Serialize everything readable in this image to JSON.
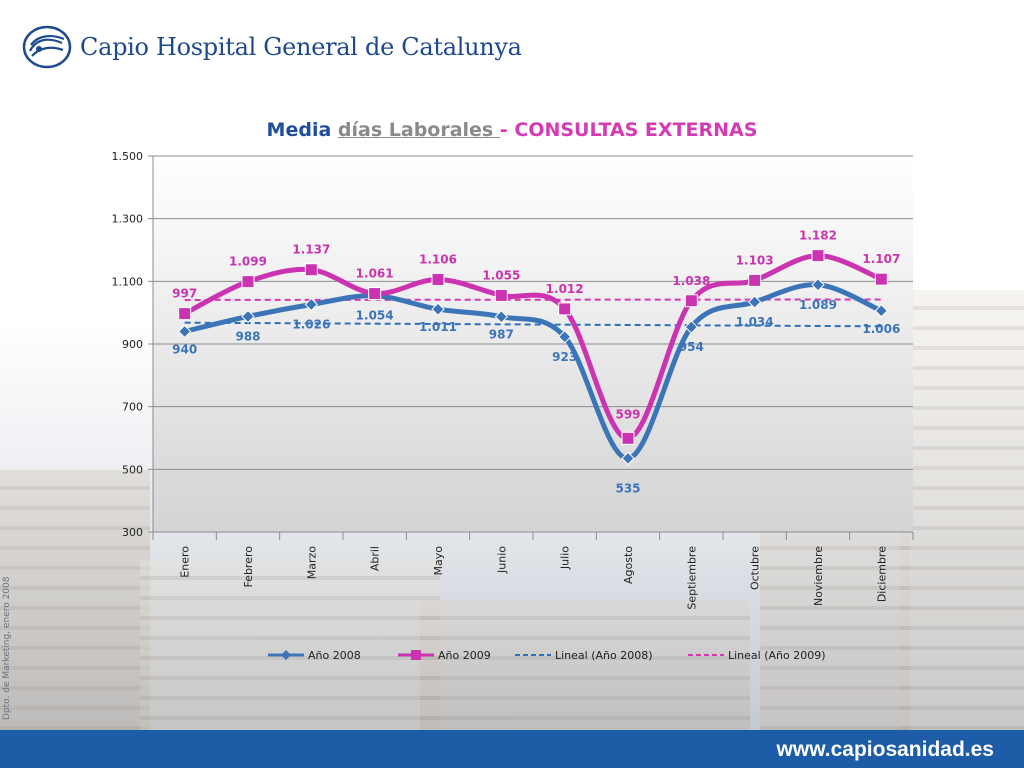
{
  "header": {
    "brand": "Capio Hospital General de Catalunya"
  },
  "side_note": "Dpto. de Marketing, enero 2008",
  "footer": {
    "url": "www.capiosanidad.es"
  },
  "chart_data": {
    "type": "line",
    "title_parts": [
      "Media",
      "días Laborales ",
      "- CONSULTAS EXTERNAS"
    ],
    "categories": [
      "Enero",
      "Febrero",
      "Marzo",
      "Abril",
      "Mayo",
      "Junio",
      "Julio",
      "Agosto",
      "Septiembre",
      "Octubre",
      "Noviembre",
      "Diciembre"
    ],
    "ylim": [
      300,
      1500
    ],
    "yticks": [
      300,
      500,
      700,
      900,
      1100,
      1300,
      1500
    ],
    "ytick_labels": [
      "300",
      "500",
      "700",
      "900",
      "1.100",
      "1.300",
      "1.500"
    ],
    "grid": true,
    "legend_position": "bottom",
    "series": [
      {
        "name": "Año 2008",
        "color": "#3c74b8",
        "marker": "diamond",
        "values": [
          940,
          988,
          1026,
          1054,
          1011,
          987,
          923,
          535,
          954,
          1034,
          1089,
          1006
        ],
        "labels": [
          "940",
          "988",
          "1.026",
          "1.054",
          "1.011",
          "987",
          "923",
          "535",
          "954",
          "1.034",
          "1.089",
          "1.006"
        ]
      },
      {
        "name": "Año 2009",
        "color": "#cc33b0",
        "marker": "square",
        "values": [
          997,
          1099,
          1137,
          1061,
          1106,
          1055,
          1012,
          599,
          1038,
          1103,
          1182,
          1107
        ],
        "labels": [
          "997",
          "1.099",
          "1.137",
          "1.061",
          "1.106",
          "1.055",
          "1.012",
          "599",
          "1.038",
          "1.103",
          "1.182",
          "1.107"
        ]
      },
      {
        "name": "Lineal (Año 2008)",
        "color": "#2e6fbb",
        "style": "dashed",
        "trend_of": "Año 2008"
      },
      {
        "name": "Lineal (Año 2009)",
        "color": "#d63ab3",
        "style": "dashed",
        "trend_of": "Año 2009"
      }
    ]
  }
}
